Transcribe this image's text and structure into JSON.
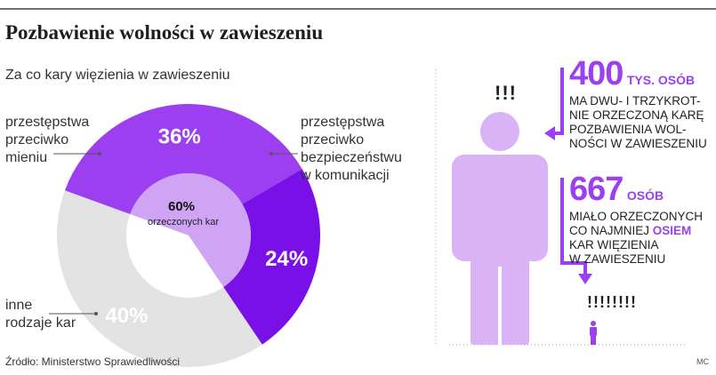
{
  "title": "Pozbawienie wolności w zawieszeniu",
  "subtitle": "Za co kary więzienia w zawieszeniu",
  "source": "Źródło: Ministerstwo Sprawiedliwości",
  "credit": "MC",
  "colors": {
    "accent": "#9b3ff0",
    "dark_purple": "#7a10e8",
    "light_purple": "#cfa4f5",
    "grey": "#e3e3e3",
    "figure": "#d9b3f5"
  },
  "chart_data": {
    "type": "pie",
    "center_label": {
      "value": "60%",
      "text": "orzeczonych kar"
    },
    "slices": [
      {
        "label_lines": [
          "przestępstwa",
          "przeciwko",
          "mieniu"
        ],
        "value": 36,
        "display": "36%"
      },
      {
        "label_lines": [
          "przestępstwa",
          "przeciwko",
          "bezpieczeństwu",
          "w komunikacji"
        ],
        "value": 24,
        "display": "24%"
      },
      {
        "label_lines": [
          "inne",
          "rodzaje kar"
        ],
        "value": 40,
        "display": "40%"
      }
    ]
  },
  "info": {
    "first": {
      "number": "400",
      "unit": "TYS. OSÓB",
      "lines": [
        "MA DWU- I TRZYKROT-",
        "NIE ORZECZONĄ KARĘ",
        "POZBAWIENIA WOL-",
        "NOŚCI W ZAWIESZENIU"
      ]
    },
    "second": {
      "number": "667",
      "unit": "OSÓB",
      "line1": "MIAŁO ORZECZONYCH",
      "line2_pre": "CO NAJMNIEJ ",
      "line2_hl": "OSIEM",
      "line3": "KAR WIĘZIENIA",
      "line4": "W ZAWIESZENIU"
    },
    "big_excl": "!!!",
    "small_excl": "!!!!!!!!"
  }
}
